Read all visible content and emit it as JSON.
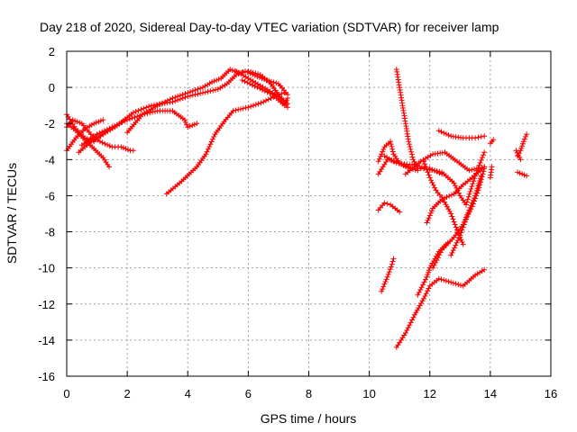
{
  "chart_data": {
    "type": "scatter",
    "title": "Day 218 of 2020, Sidereal Day-to-day VTEC variation (SDTVAR) for receiver lamp",
    "xlabel": "GPS time / hours",
    "ylabel": "SDTVAR / TECUs",
    "xlim": [
      0,
      16
    ],
    "ylim": [
      -16,
      2
    ],
    "xticks": [
      0,
      2,
      4,
      6,
      8,
      10,
      12,
      14,
      16
    ],
    "yticks": [
      -16,
      -14,
      -12,
      -10,
      -8,
      -6,
      -4,
      -2,
      0,
      2
    ],
    "grid": true,
    "marker": "plus",
    "color": "#ff0000",
    "series": [
      {
        "points": [
          [
            0.0,
            -3.5
          ],
          [
            0.3,
            -2.8
          ],
          [
            0.6,
            -2.3
          ],
          [
            0.9,
            -2.0
          ],
          [
            1.2,
            -1.8
          ]
        ]
      },
      {
        "points": [
          [
            0.0,
            -2.0
          ],
          [
            0.3,
            -2.4
          ],
          [
            0.6,
            -2.9
          ],
          [
            0.9,
            -3.4
          ],
          [
            1.2,
            -3.9
          ],
          [
            1.4,
            -4.4
          ]
        ]
      },
      {
        "points": [
          [
            0.0,
            -2.2
          ],
          [
            0.2,
            -1.8
          ],
          [
            0.5,
            -2.0
          ],
          [
            0.8,
            -2.6
          ],
          [
            1.1,
            -3.0
          ],
          [
            1.5,
            -3.3
          ],
          [
            1.8,
            -3.3
          ],
          [
            2.1,
            -3.5
          ],
          [
            2.2,
            -3.5
          ]
        ]
      },
      {
        "points": [
          [
            0.0,
            -1.5
          ],
          [
            0.3,
            -2.3
          ],
          [
            0.6,
            -2.8
          ],
          [
            0.9,
            -3.0
          ],
          [
            1.2,
            -2.6
          ]
        ]
      },
      {
        "points": [
          [
            0.5,
            -3.2
          ],
          [
            1.0,
            -2.6
          ],
          [
            1.5,
            -2.2
          ],
          [
            2.0,
            -1.8
          ],
          [
            2.5,
            -1.5
          ],
          [
            3.0,
            -1.3
          ],
          [
            3.5,
            -1.3
          ],
          [
            3.9,
            -1.8
          ],
          [
            4.0,
            -2.2
          ],
          [
            4.3,
            -2.0
          ]
        ]
      },
      {
        "points": [
          [
            0.4,
            -3.6
          ],
          [
            0.8,
            -3.0
          ],
          [
            1.2,
            -2.6
          ],
          [
            1.6,
            -2.2
          ],
          [
            2.2,
            -1.4
          ],
          [
            2.8,
            -1.0
          ],
          [
            3.5,
            -0.8
          ],
          [
            4.0,
            -0.5
          ],
          [
            4.5,
            -0.3
          ],
          [
            5.0,
            -0.1
          ],
          [
            5.3,
            0.2
          ],
          [
            5.6,
            0.7
          ],
          [
            5.9,
            0.9
          ],
          [
            6.3,
            0.6
          ],
          [
            6.6,
            0.4
          ],
          [
            7.0,
            0.2
          ],
          [
            7.3,
            -0.4
          ]
        ]
      },
      {
        "points": [
          [
            2.0,
            -2.5
          ],
          [
            2.5,
            -1.5
          ],
          [
            3.0,
            -1.0
          ],
          [
            3.5,
            -0.6
          ],
          [
            4.0,
            -0.3
          ],
          [
            4.5,
            0.0
          ],
          [
            4.8,
            0.3
          ],
          [
            5.1,
            0.5
          ],
          [
            5.4,
            1.0
          ],
          [
            5.7,
            0.8
          ],
          [
            6.0,
            0.9
          ],
          [
            6.4,
            0.7
          ],
          [
            6.7,
            0.3
          ],
          [
            7.0,
            -0.4
          ],
          [
            7.3,
            -1.1
          ]
        ]
      },
      {
        "points": [
          [
            5.6,
            0.9
          ],
          [
            6.0,
            0.5
          ],
          [
            6.4,
            0.1
          ],
          [
            6.8,
            -0.3
          ],
          [
            7.1,
            -0.6
          ],
          [
            7.3,
            -0.9
          ]
        ]
      },
      {
        "points": [
          [
            5.8,
            0.4
          ],
          [
            6.3,
            0.0
          ],
          [
            6.8,
            -0.4
          ],
          [
            7.2,
            -1.0
          ],
          [
            7.3,
            -0.6
          ]
        ]
      },
      {
        "points": [
          [
            3.3,
            -5.9
          ],
          [
            3.8,
            -5.2
          ],
          [
            4.3,
            -4.4
          ],
          [
            4.6,
            -3.7
          ],
          [
            4.9,
            -2.6
          ],
          [
            5.2,
            -1.9
          ],
          [
            5.5,
            -1.3
          ],
          [
            6.0,
            -1.1
          ],
          [
            6.5,
            -0.8
          ],
          [
            7.0,
            -0.4
          ],
          [
            7.2,
            -0.3
          ]
        ]
      },
      {
        "points": [
          [
            10.9,
            1.0
          ],
          [
            11.0,
            0.0
          ],
          [
            11.1,
            -1.0
          ],
          [
            11.2,
            -2.0
          ],
          [
            11.3,
            -3.0
          ],
          [
            11.45,
            -4.0
          ],
          [
            11.6,
            -4.5
          ],
          [
            12.0,
            -4.5
          ],
          [
            12.4,
            -4.8
          ]
        ]
      },
      {
        "points": [
          [
            10.3,
            -4.1
          ],
          [
            10.5,
            -3.3
          ],
          [
            10.7,
            -3.0
          ],
          [
            10.8,
            -3.7
          ],
          [
            11.0,
            -4.2
          ],
          [
            11.3,
            -4.4
          ]
        ]
      },
      {
        "points": [
          [
            10.3,
            -4.8
          ],
          [
            10.6,
            -4.0
          ],
          [
            10.9,
            -4.1
          ],
          [
            11.2,
            -4.4
          ],
          [
            11.6,
            -4.6
          ]
        ]
      },
      {
        "points": [
          [
            10.5,
            -3.8
          ],
          [
            10.9,
            -4.2
          ],
          [
            11.5,
            -4.3
          ],
          [
            11.9,
            -4.5
          ],
          [
            12.4,
            -4.7
          ],
          [
            12.8,
            -5.3
          ],
          [
            13.0,
            -6.0
          ],
          [
            13.2,
            -6.5
          ],
          [
            13.5,
            -4.9
          ],
          [
            13.8,
            -3.6
          ]
        ]
      },
      {
        "points": [
          [
            11.2,
            -4.8
          ],
          [
            11.7,
            -4.1
          ],
          [
            12.1,
            -3.7
          ],
          [
            12.5,
            -3.6
          ],
          [
            12.9,
            -4.1
          ],
          [
            13.3,
            -4.6
          ],
          [
            13.8,
            -4.4
          ]
        ]
      },
      {
        "points": [
          [
            12.3,
            -2.4
          ],
          [
            12.7,
            -2.7
          ],
          [
            13.1,
            -2.8
          ],
          [
            13.5,
            -2.8
          ],
          [
            13.8,
            -2.7
          ]
        ]
      },
      {
        "points": [
          [
            10.3,
            -6.8
          ],
          [
            10.5,
            -6.4
          ],
          [
            10.7,
            -6.5
          ],
          [
            11.0,
            -6.9
          ]
        ]
      },
      {
        "points": [
          [
            11.8,
            -4.1
          ],
          [
            12.0,
            -5.0
          ],
          [
            12.2,
            -5.7
          ],
          [
            12.4,
            -6.1
          ],
          [
            12.7,
            -7.0
          ],
          [
            12.9,
            -7.9
          ],
          [
            13.1,
            -8.7
          ]
        ]
      },
      {
        "points": [
          [
            11.9,
            -7.5
          ],
          [
            12.1,
            -6.7
          ],
          [
            12.4,
            -6.2
          ],
          [
            12.8,
            -5.9
          ],
          [
            13.1,
            -5.4
          ],
          [
            13.4,
            -5.0
          ],
          [
            13.6,
            -4.7
          ],
          [
            13.8,
            -4.4
          ]
        ]
      },
      {
        "points": [
          [
            12.1,
            -10.0
          ],
          [
            12.4,
            -9.0
          ],
          [
            12.8,
            -8.3
          ],
          [
            13.1,
            -7.6
          ],
          [
            13.3,
            -6.8
          ],
          [
            13.5,
            -6.0
          ],
          [
            13.7,
            -4.9
          ]
        ]
      },
      {
        "points": [
          [
            12.7,
            -9.3
          ],
          [
            13.0,
            -8.2
          ],
          [
            13.2,
            -7.3
          ],
          [
            13.4,
            -6.6
          ],
          [
            13.6,
            -5.7
          ],
          [
            13.8,
            -4.5
          ]
        ]
      },
      {
        "points": [
          [
            10.4,
            -11.3
          ],
          [
            10.6,
            -10.5
          ],
          [
            10.75,
            -9.8
          ],
          [
            10.8,
            -9.5
          ]
        ]
      },
      {
        "points": [
          [
            10.9,
            -14.4
          ],
          [
            11.2,
            -13.6
          ],
          [
            11.5,
            -12.6
          ],
          [
            11.8,
            -11.7
          ],
          [
            12.0,
            -11.0
          ],
          [
            12.3,
            -10.6
          ],
          [
            12.7,
            -10.8
          ],
          [
            13.1,
            -11.0
          ],
          [
            13.5,
            -10.4
          ],
          [
            13.8,
            -10.1
          ]
        ]
      },
      {
        "points": [
          [
            11.6,
            -11.5
          ],
          [
            11.9,
            -10.5
          ],
          [
            12.0,
            -10.0
          ],
          [
            12.3,
            -9.1
          ],
          [
            12.6,
            -8.6
          ]
        ]
      },
      {
        "points": [
          [
            14.0,
            -5.0
          ],
          [
            14.05,
            -4.4
          ]
        ]
      },
      {
        "points": [
          [
            14.0,
            -3.1
          ],
          [
            14.1,
            -2.9
          ]
        ]
      },
      {
        "points": [
          [
            14.9,
            -3.8
          ],
          [
            15.0,
            -3.5
          ],
          [
            15.1,
            -3.0
          ],
          [
            15.2,
            -2.6
          ]
        ]
      },
      {
        "points": [
          [
            14.9,
            -4.7
          ],
          [
            15.2,
            -4.9
          ]
        ]
      },
      {
        "points": [
          [
            14.85,
            -3.5
          ],
          [
            15.0,
            -4.0
          ]
        ]
      }
    ]
  }
}
